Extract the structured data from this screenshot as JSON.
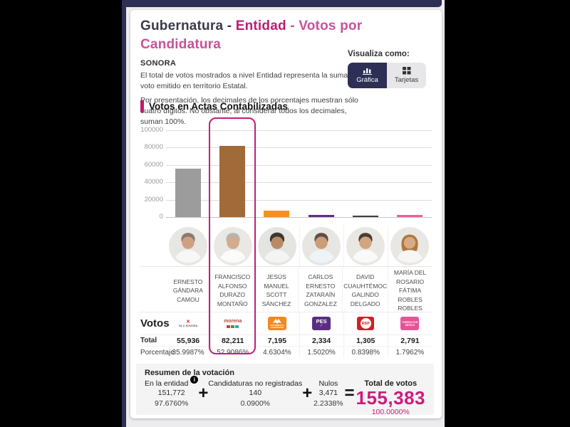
{
  "header": {
    "title_part1": "Gubernatura - ",
    "title_entity": "Entidad",
    "title_part2": " - Votos por Candidatura",
    "state": "SONORA",
    "description1": "El total de votos mostrados a nivel Entidad representa la suma del voto emitido en territorio Estatal.",
    "description2": "Por presentación, los decimales de los porcentajes muestran sólo cuatro dígitos. No obstante, al considerar todos los decimales, suman 100%.",
    "visualize_label": "Visualiza como:",
    "view_buttons": [
      {
        "label": "Gráfica",
        "selected": true,
        "icon": "bar-chart-icon"
      },
      {
        "label": "Tarjetas",
        "selected": false,
        "icon": "cards-grid-icon"
      }
    ]
  },
  "chart_section": {
    "title": "Votos en Actas Contabilizadas"
  },
  "chart_data": {
    "type": "bar",
    "title": "Votos en Actas Contabilizadas",
    "categories": [
      "ERNESTO GÁNDARA CAMOU",
      "FRANCISCO ALFONSO DURAZO MONTAÑO",
      "JESÚS MANUEL SCOTT SÁNCHEZ",
      "CARLOS ERNESTO ZATARAÍN GONZALEZ",
      "DAVID CUAUHTÉMOC GALINDO DELGADO",
      "MARÍA DEL ROSARIO FÁTIMA ROBLES ROBLES"
    ],
    "values": [
      55936,
      82211,
      7195,
      2334,
      1305,
      2791
    ],
    "bar_colors": [
      "#9c9c9c",
      "#a16a39",
      "#f5921e",
      "#642a85",
      "#3f3f3f",
      "#ee609c"
    ],
    "ylim": [
      0,
      100000
    ],
    "yticks": [
      0,
      20000,
      40000,
      60000,
      80000,
      100000
    ],
    "ytick_labels": [
      "100000",
      "80000",
      "60000",
      "40000",
      "20000",
      "0"
    ],
    "grid": true,
    "highlighted_index": 1,
    "highlight_color": "#bf2078"
  },
  "candidates": [
    {
      "name": "ERNESTO GÁNDARA CAMOU",
      "party_logo": "va-x-sonora",
      "logo_mark": "✕",
      "logo_text": "VA X SONORA",
      "total": "55,936",
      "percent": "35.9987%"
    },
    {
      "name": "FRANCISCO ALFONSO DURAZO MONTAÑO",
      "party_logo": "morena-coalition",
      "logo_text": "morena",
      "total": "82,211",
      "percent": "52.9086%",
      "highlighted": true
    },
    {
      "name": "JESÚS MANUEL SCOTT SÁNCHEZ",
      "party_logo": "movimiento-ciudadano",
      "logo_text": "MOVIMIENTO CIUDADANO",
      "total": "7,195",
      "percent": "4.6304%"
    },
    {
      "name": "CARLOS ERNESTO ZATARAÍN GONZALEZ",
      "party_logo": "pes",
      "logo_text": "PES",
      "logo_mark": "✓",
      "total": "2,334",
      "percent": "1.5020%"
    },
    {
      "name": "DAVID CUAUHTÉMOC GALINDO DELGADO",
      "party_logo": "rsp",
      "logo_text": "RSP",
      "total": "1,305",
      "percent": "0.8398%"
    },
    {
      "name": "MARÍA DEL ROSARIO FÁTIMA ROBLES ROBLES",
      "party_logo": "fuerza-por-mexico",
      "logo_text": "FUERZA POR MÉXICO",
      "total": "2,791",
      "percent": "1.7962%"
    }
  ],
  "table": {
    "votes_label": "Votos",
    "total_label": "Total",
    "percent_label": "Porcentaje"
  },
  "summary": {
    "title": "Resumen de la votación",
    "items": [
      {
        "label": "En la entidad",
        "value": "151,772",
        "percent": "97.6760%",
        "has_info_icon": true
      },
      {
        "label": "Candidaturas no registradas",
        "value": "140",
        "percent": "0.0900%"
      },
      {
        "label": "Nulos",
        "value": "3,471",
        "percent": "2.2338%"
      }
    ],
    "plus": "+",
    "equals": "=",
    "total_label": "Total de votos",
    "total_value": "155,383",
    "total_percent": "100.0000%"
  },
  "colors": {
    "navy": "#2d2f55",
    "magenta_accent": "#c21a6e",
    "title_pink_bold": "#ba1d74",
    "title_pink_light": "#c9519a",
    "total_pink": "#ce1b7e",
    "page_background": "#ececee"
  }
}
